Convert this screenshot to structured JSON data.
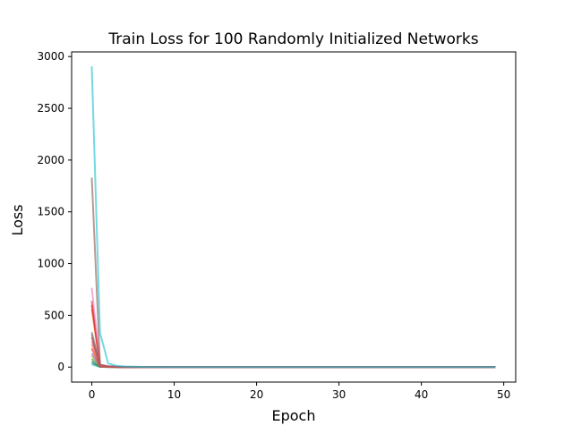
{
  "chart_data": {
    "type": "line",
    "title": "Train Loss for 100 Randomly Initialized Networks",
    "xlabel": "Epoch",
    "ylabel": "Loss",
    "xlim": [
      -2.45,
      51.45
    ],
    "ylim": [
      -145,
      3045
    ],
    "xticks": [
      0,
      10,
      20,
      30,
      40,
      50
    ],
    "yticks": [
      0,
      500,
      1000,
      1500,
      2000,
      2500,
      3000
    ],
    "grid": false,
    "legend": "none",
    "line_alpha": 0.6,
    "series": [
      {
        "color": "#17becf",
        "values": [
          2905,
          330,
          35,
          12,
          6,
          4,
          2,
          1,
          1,
          0
        ]
      },
      {
        "color": "#8c564b",
        "values": [
          1830,
          25,
          8,
          4,
          2,
          1,
          1,
          0
        ]
      },
      {
        "color": "#e377c2",
        "values": [
          765,
          20,
          6,
          3,
          2,
          1,
          0
        ]
      },
      {
        "color": "#d62728",
        "values": [
          640,
          18,
          5,
          3,
          1,
          1,
          0
        ]
      },
      {
        "color": "#d62728",
        "values": [
          600,
          15,
          5,
          2,
          1,
          0
        ]
      },
      {
        "color": "#ff7f0e",
        "values": [
          560,
          12,
          4,
          2,
          1,
          0
        ]
      },
      {
        "color": "#7f7f7f",
        "values": [
          340,
          10,
          3,
          2,
          1,
          0
        ]
      },
      {
        "color": "#8c564b",
        "values": [
          320,
          10,
          3,
          1,
          0
        ]
      },
      {
        "color": "#d62728",
        "values": [
          290,
          9,
          3,
          1,
          0
        ]
      },
      {
        "color": "#e377c2",
        "values": [
          250,
          8,
          3,
          1,
          0
        ]
      },
      {
        "color": "#ff7f0e",
        "values": [
          220,
          7,
          2,
          1,
          0
        ]
      },
      {
        "color": "#d62728",
        "values": [
          180,
          6,
          2,
          1,
          0
        ]
      },
      {
        "color": "#9467bd",
        "values": [
          130,
          5,
          2,
          1,
          0
        ]
      },
      {
        "color": "#bcbd22",
        "values": [
          110,
          5,
          2,
          1,
          0
        ]
      },
      {
        "color": "#2ca02c",
        "values": [
          80,
          4,
          1,
          0
        ]
      },
      {
        "color": "#1f77b4",
        "values": [
          55,
          3,
          1,
          0
        ]
      },
      {
        "color": "#2ca02c",
        "values": [
          40,
          3,
          1,
          0
        ]
      },
      {
        "color": "#17becf",
        "values": [
          25,
          2,
          1,
          0
        ]
      }
    ]
  }
}
